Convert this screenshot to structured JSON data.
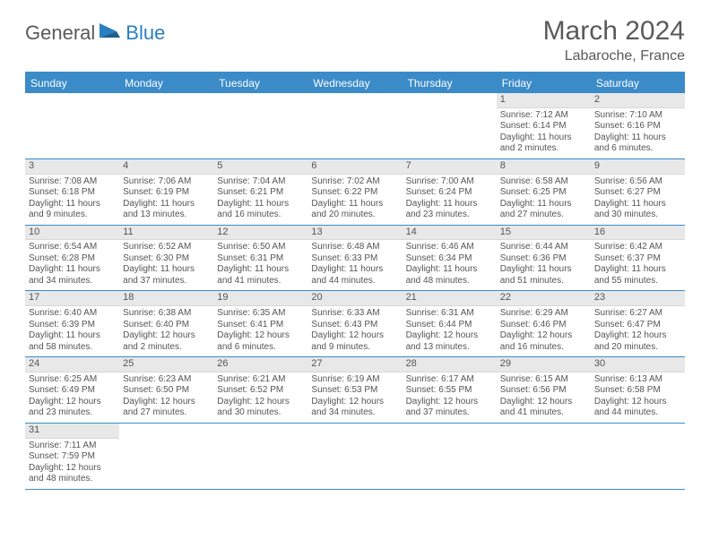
{
  "logo": {
    "text1": "General",
    "text2": "Blue"
  },
  "title": "March 2024",
  "location": "Labaroche, France",
  "colors": {
    "header_blue": "#3b8bc9",
    "daynum_bg": "#e8e8e8",
    "text": "#555555"
  },
  "day_headers": [
    "Sunday",
    "Monday",
    "Tuesday",
    "Wednesday",
    "Thursday",
    "Friday",
    "Saturday"
  ],
  "weeks": [
    [
      null,
      null,
      null,
      null,
      null,
      {
        "n": "1",
        "sunrise": "Sunrise: 7:12 AM",
        "sunset": "Sunset: 6:14 PM",
        "daylight": "Daylight: 11 hours and 2 minutes."
      },
      {
        "n": "2",
        "sunrise": "Sunrise: 7:10 AM",
        "sunset": "Sunset: 6:16 PM",
        "daylight": "Daylight: 11 hours and 6 minutes."
      }
    ],
    [
      {
        "n": "3",
        "sunrise": "Sunrise: 7:08 AM",
        "sunset": "Sunset: 6:18 PM",
        "daylight": "Daylight: 11 hours and 9 minutes."
      },
      {
        "n": "4",
        "sunrise": "Sunrise: 7:06 AM",
        "sunset": "Sunset: 6:19 PM",
        "daylight": "Daylight: 11 hours and 13 minutes."
      },
      {
        "n": "5",
        "sunrise": "Sunrise: 7:04 AM",
        "sunset": "Sunset: 6:21 PM",
        "daylight": "Daylight: 11 hours and 16 minutes."
      },
      {
        "n": "6",
        "sunrise": "Sunrise: 7:02 AM",
        "sunset": "Sunset: 6:22 PM",
        "daylight": "Daylight: 11 hours and 20 minutes."
      },
      {
        "n": "7",
        "sunrise": "Sunrise: 7:00 AM",
        "sunset": "Sunset: 6:24 PM",
        "daylight": "Daylight: 11 hours and 23 minutes."
      },
      {
        "n": "8",
        "sunrise": "Sunrise: 6:58 AM",
        "sunset": "Sunset: 6:25 PM",
        "daylight": "Daylight: 11 hours and 27 minutes."
      },
      {
        "n": "9",
        "sunrise": "Sunrise: 6:56 AM",
        "sunset": "Sunset: 6:27 PM",
        "daylight": "Daylight: 11 hours and 30 minutes."
      }
    ],
    [
      {
        "n": "10",
        "sunrise": "Sunrise: 6:54 AM",
        "sunset": "Sunset: 6:28 PM",
        "daylight": "Daylight: 11 hours and 34 minutes."
      },
      {
        "n": "11",
        "sunrise": "Sunrise: 6:52 AM",
        "sunset": "Sunset: 6:30 PM",
        "daylight": "Daylight: 11 hours and 37 minutes."
      },
      {
        "n": "12",
        "sunrise": "Sunrise: 6:50 AM",
        "sunset": "Sunset: 6:31 PM",
        "daylight": "Daylight: 11 hours and 41 minutes."
      },
      {
        "n": "13",
        "sunrise": "Sunrise: 6:48 AM",
        "sunset": "Sunset: 6:33 PM",
        "daylight": "Daylight: 11 hours and 44 minutes."
      },
      {
        "n": "14",
        "sunrise": "Sunrise: 6:46 AM",
        "sunset": "Sunset: 6:34 PM",
        "daylight": "Daylight: 11 hours and 48 minutes."
      },
      {
        "n": "15",
        "sunrise": "Sunrise: 6:44 AM",
        "sunset": "Sunset: 6:36 PM",
        "daylight": "Daylight: 11 hours and 51 minutes."
      },
      {
        "n": "16",
        "sunrise": "Sunrise: 6:42 AM",
        "sunset": "Sunset: 6:37 PM",
        "daylight": "Daylight: 11 hours and 55 minutes."
      }
    ],
    [
      {
        "n": "17",
        "sunrise": "Sunrise: 6:40 AM",
        "sunset": "Sunset: 6:39 PM",
        "daylight": "Daylight: 11 hours and 58 minutes."
      },
      {
        "n": "18",
        "sunrise": "Sunrise: 6:38 AM",
        "sunset": "Sunset: 6:40 PM",
        "daylight": "Daylight: 12 hours and 2 minutes."
      },
      {
        "n": "19",
        "sunrise": "Sunrise: 6:35 AM",
        "sunset": "Sunset: 6:41 PM",
        "daylight": "Daylight: 12 hours and 6 minutes."
      },
      {
        "n": "20",
        "sunrise": "Sunrise: 6:33 AM",
        "sunset": "Sunset: 6:43 PM",
        "daylight": "Daylight: 12 hours and 9 minutes."
      },
      {
        "n": "21",
        "sunrise": "Sunrise: 6:31 AM",
        "sunset": "Sunset: 6:44 PM",
        "daylight": "Daylight: 12 hours and 13 minutes."
      },
      {
        "n": "22",
        "sunrise": "Sunrise: 6:29 AM",
        "sunset": "Sunset: 6:46 PM",
        "daylight": "Daylight: 12 hours and 16 minutes."
      },
      {
        "n": "23",
        "sunrise": "Sunrise: 6:27 AM",
        "sunset": "Sunset: 6:47 PM",
        "daylight": "Daylight: 12 hours and 20 minutes."
      }
    ],
    [
      {
        "n": "24",
        "sunrise": "Sunrise: 6:25 AM",
        "sunset": "Sunset: 6:49 PM",
        "daylight": "Daylight: 12 hours and 23 minutes."
      },
      {
        "n": "25",
        "sunrise": "Sunrise: 6:23 AM",
        "sunset": "Sunset: 6:50 PM",
        "daylight": "Daylight: 12 hours and 27 minutes."
      },
      {
        "n": "26",
        "sunrise": "Sunrise: 6:21 AM",
        "sunset": "Sunset: 6:52 PM",
        "daylight": "Daylight: 12 hours and 30 minutes."
      },
      {
        "n": "27",
        "sunrise": "Sunrise: 6:19 AM",
        "sunset": "Sunset: 6:53 PM",
        "daylight": "Daylight: 12 hours and 34 minutes."
      },
      {
        "n": "28",
        "sunrise": "Sunrise: 6:17 AM",
        "sunset": "Sunset: 6:55 PM",
        "daylight": "Daylight: 12 hours and 37 minutes."
      },
      {
        "n": "29",
        "sunrise": "Sunrise: 6:15 AM",
        "sunset": "Sunset: 6:56 PM",
        "daylight": "Daylight: 12 hours and 41 minutes."
      },
      {
        "n": "30",
        "sunrise": "Sunrise: 6:13 AM",
        "sunset": "Sunset: 6:58 PM",
        "daylight": "Daylight: 12 hours and 44 minutes."
      }
    ],
    [
      {
        "n": "31",
        "sunrise": "Sunrise: 7:11 AM",
        "sunset": "Sunset: 7:59 PM",
        "daylight": "Daylight: 12 hours and 48 minutes."
      },
      null,
      null,
      null,
      null,
      null,
      null
    ]
  ]
}
